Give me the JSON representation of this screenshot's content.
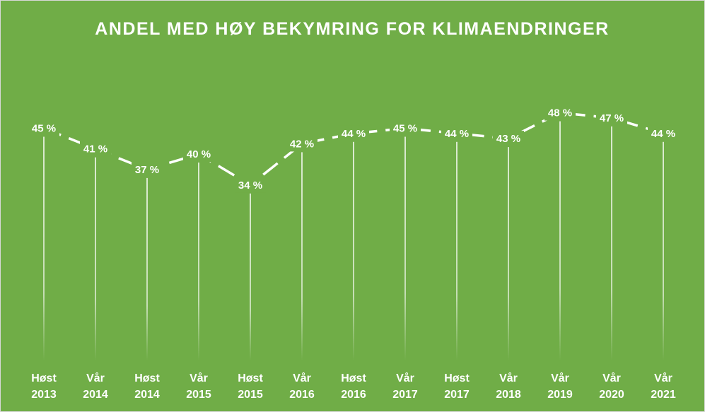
{
  "chart_data": {
    "type": "line",
    "title": "ANDEL MED HØY BEKYMRING FOR KLIMAENDRINGER",
    "categories": [
      [
        "Høst",
        "2013"
      ],
      [
        "Vår",
        "2014"
      ],
      [
        "Høst",
        "2014"
      ],
      [
        "Vår",
        "2015"
      ],
      [
        "Høst",
        "2015"
      ],
      [
        "Vår",
        "2016"
      ],
      [
        "Høst",
        "2016"
      ],
      [
        "Vår",
        "2017"
      ],
      [
        "Høst",
        "2017"
      ],
      [
        "Vår",
        "2018"
      ],
      [
        "Vår",
        "2019"
      ],
      [
        "Vår",
        "2020"
      ],
      [
        "Vår",
        "2021"
      ]
    ],
    "values": [
      45,
      41,
      37,
      40,
      34,
      42,
      44,
      45,
      44,
      43,
      48,
      47,
      44
    ],
    "value_labels": [
      "45 %",
      "41 %",
      "37 %",
      "40 %",
      "34 %",
      "42 %",
      "44 %",
      "45 %",
      "44 %",
      "43 %",
      "48 %",
      "47 %",
      "44 %"
    ],
    "color": "#ffffff",
    "ylim": [
      0,
      50
    ]
  }
}
